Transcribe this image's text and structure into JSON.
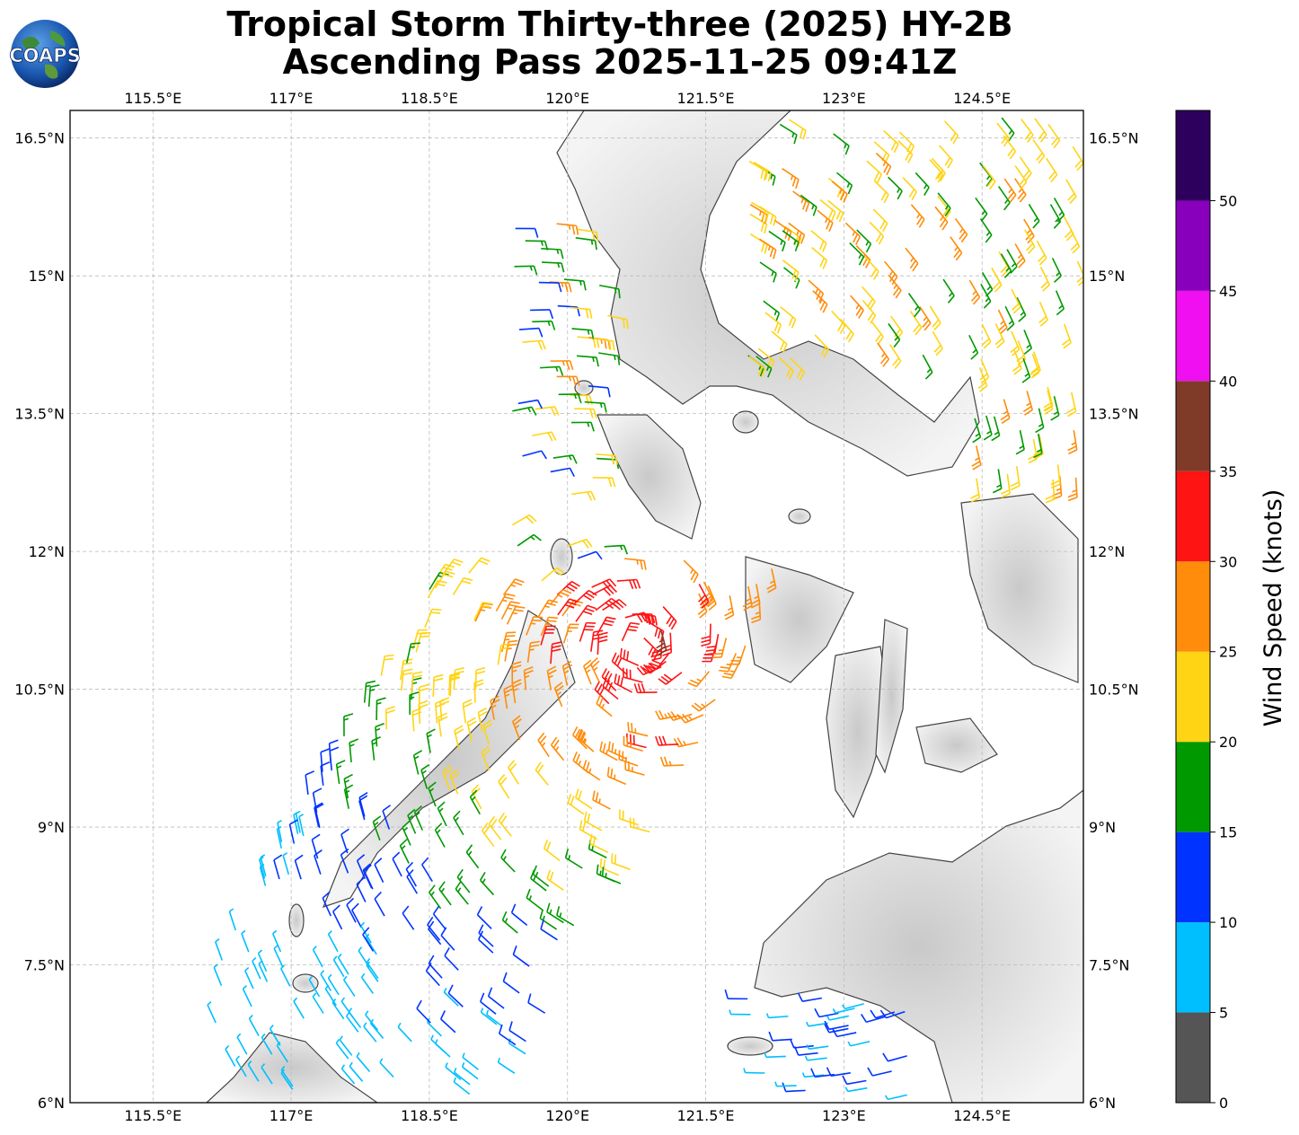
{
  "title": {
    "line1": "Tropical Storm Thirty-three (2025) HY-2B",
    "line2": "Ascending Pass 2025-11-25 09:41Z"
  },
  "logo": {
    "text": "COAPS",
    "icon": "globe-logo-icon"
  },
  "map": {
    "lon_range": [
      114.6,
      125.6
    ],
    "lat_range": [
      6.0,
      16.8
    ],
    "lon_ticks": [
      "115.5°E",
      "117°E",
      "118.5°E",
      "120°E",
      "121.5°E",
      "123°E",
      "124.5°E"
    ],
    "lon_tick_values": [
      115.5,
      117,
      118.5,
      120,
      121.5,
      123,
      124.5
    ],
    "lat_ticks": [
      "6°N",
      "7.5°N",
      "9°N",
      "10.5°N",
      "12°N",
      "13.5°N",
      "15°N",
      "16.5°N"
    ],
    "lat_tick_values": [
      6,
      7.5,
      9,
      10.5,
      12,
      13.5,
      15,
      16.5
    ],
    "grid": true,
    "storm_center": {
      "lon": 120.8,
      "lat": 11.0
    },
    "wind_barbs_icon": "wind-barb-icon"
  },
  "colorbar": {
    "title": "Wind Speed (knots)",
    "tick_labels": [
      "0",
      "5",
      "10",
      "15",
      "20",
      "25",
      "30",
      "35",
      "40",
      "45",
      "50"
    ],
    "bins": [
      {
        "min": 0,
        "max": 5,
        "color": "#555555"
      },
      {
        "min": 5,
        "max": 10,
        "color": "#00bfff"
      },
      {
        "min": 10,
        "max": 15,
        "color": "#0033ff"
      },
      {
        "min": 15,
        "max": 20,
        "color": "#009900"
      },
      {
        "min": 20,
        "max": 25,
        "color": "#ffd414"
      },
      {
        "min": 25,
        "max": 30,
        "color": "#ff8c0a"
      },
      {
        "min": 30,
        "max": 35,
        "color": "#ff1414"
      },
      {
        "min": 35,
        "max": 40,
        "color": "#7f3a28"
      },
      {
        "min": 40,
        "max": 45,
        "color": "#f00ff0"
      },
      {
        "min": 45,
        "max": 50,
        "color": "#8800bb"
      },
      {
        "min": 50,
        "max": 55,
        "color": "#2e005e"
      }
    ]
  }
}
